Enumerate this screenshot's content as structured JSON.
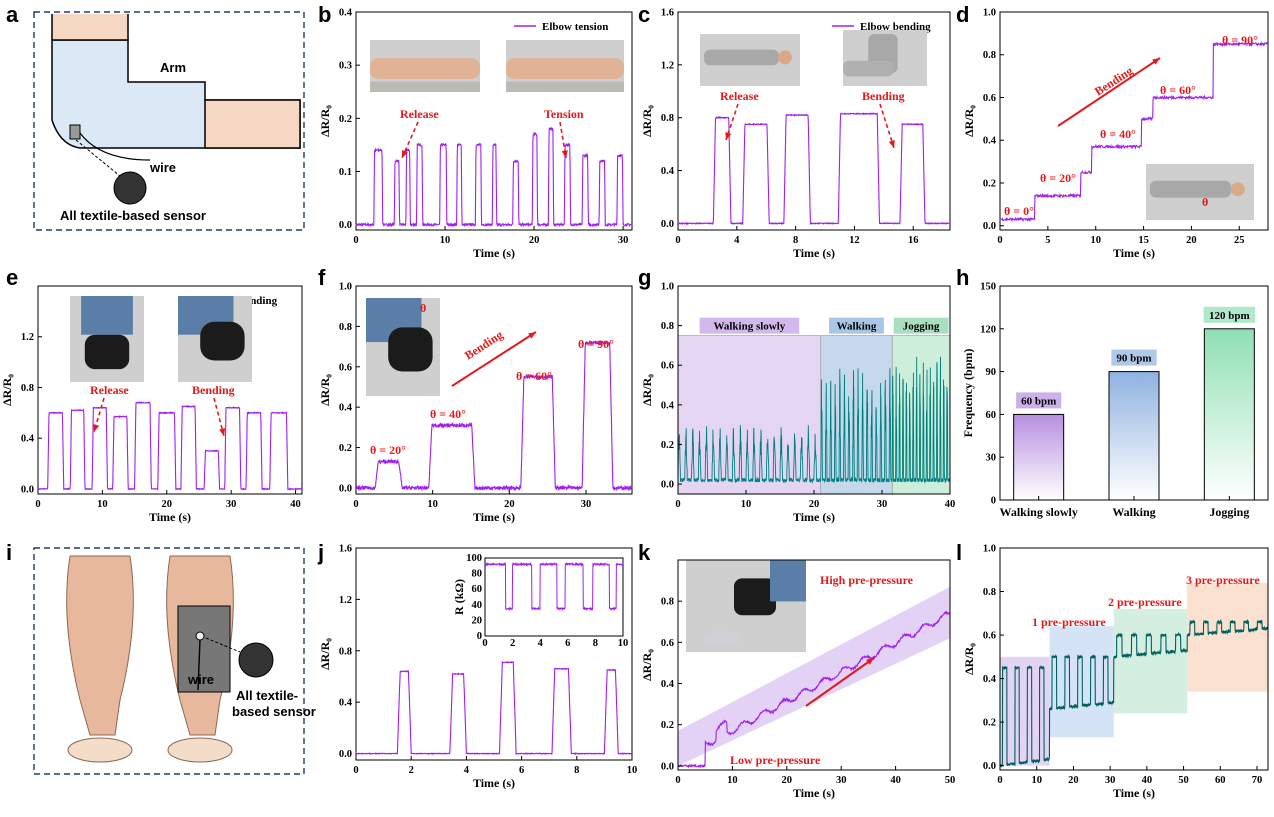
{
  "panels": [
    {
      "id": "a",
      "letter": "a",
      "type": "diagram",
      "labels": [
        "Arm",
        "wire",
        "All textile-based  sensor"
      ]
    },
    {
      "id": "b",
      "letter": "b",
      "type": "line",
      "x_label": "Time (s)",
      "y_label": "ΔR/R₀",
      "xlim": [
        0,
        31
      ],
      "ylim": [
        -0.01,
        0.4
      ],
      "x_ticks": [
        0,
        10,
        20,
        30
      ],
      "y_ticks": [
        0.0,
        0.1,
        0.2,
        0.3,
        0.4
      ],
      "legend": "Elbow tension",
      "color": "#a020f0",
      "annotations": [
        {
          "text": "Release",
          "color": "red"
        },
        {
          "text": "Tension",
          "color": "red"
        }
      ],
      "pulses": [
        [
          2,
          3,
          0.14
        ],
        [
          4.3,
          4.9,
          0.12
        ],
        [
          5.6,
          6.1,
          0.14
        ],
        [
          6.8,
          7.5,
          0.15
        ],
        [
          9.4,
          10.2,
          0.15
        ],
        [
          11.3,
          11.9,
          0.15
        ],
        [
          13.4,
          14.1,
          0.15
        ],
        [
          15.3,
          15.8,
          0.15
        ],
        [
          17.6,
          18.3,
          0.12
        ],
        [
          19.8,
          20.4,
          0.17
        ],
        [
          21.6,
          22.2,
          0.18
        ],
        [
          23.4,
          24.1,
          0.15
        ],
        [
          25.4,
          26.1,
          0.13
        ],
        [
          27.3,
          28,
          0.12
        ],
        [
          29.3,
          30,
          0.13
        ]
      ],
      "baseline": 0.0
    },
    {
      "id": "c",
      "letter": "c",
      "type": "line",
      "x_label": "Time (s)",
      "y_label": "ΔR/R₀",
      "xlim": [
        0,
        18.5
      ],
      "ylim": [
        -0.05,
        1.6
      ],
      "x_ticks": [
        0,
        4,
        8,
        12,
        16
      ],
      "y_ticks": [
        0.0,
        0.4,
        0.8,
        1.2,
        1.6
      ],
      "legend": "Elbow bending",
      "color": "#a020f0",
      "annotations": [
        {
          "text": "Release",
          "color": "red"
        },
        {
          "text": "Bending",
          "color": "red"
        }
      ],
      "pulses": [
        [
          2.4,
          3.6,
          0.8
        ],
        [
          4.4,
          6.2,
          0.75
        ],
        [
          7.2,
          9.0,
          0.82
        ],
        [
          10.9,
          13.7,
          0.83
        ],
        [
          15.1,
          16.8,
          0.75
        ]
      ],
      "baseline": 0.0
    },
    {
      "id": "d",
      "letter": "d",
      "type": "line",
      "x_label": "Time (s)",
      "y_label": "ΔR/R₀",
      "xlim": [
        0,
        28
      ],
      "ylim": [
        -0.02,
        1.0
      ],
      "x_ticks": [
        0,
        5,
        10,
        15,
        20,
        25
      ],
      "y_ticks": [
        0.0,
        0.2,
        0.4,
        0.6,
        0.8,
        1.0
      ],
      "color": "#a020f0",
      "annotations": [
        {
          "text": "θ = 0°"
        },
        {
          "text": "θ = 20°"
        },
        {
          "text": "θ = 40°"
        },
        {
          "text": "θ = 60°"
        },
        {
          "text": "θ = 90°"
        },
        {
          "text": "Bending"
        }
      ],
      "inset_text": "θ",
      "steps": [
        [
          0,
          3.6,
          0.03
        ],
        [
          3.6,
          8.4,
          0.14
        ],
        [
          8.4,
          9.6,
          0.25
        ],
        [
          9.6,
          14.8,
          0.37
        ],
        [
          14.8,
          16,
          0.5
        ],
        [
          16,
          22.3,
          0.6
        ],
        [
          22.3,
          28,
          0.85
        ]
      ]
    },
    {
      "id": "e",
      "letter": "e",
      "type": "line",
      "x_label": "Time (s)",
      "y_label": "ΔR/R₀",
      "xlim": [
        0,
        41
      ],
      "ylim": [
        -0.04,
        1.6
      ],
      "x_ticks": [
        0,
        10,
        20,
        30,
        40
      ],
      "y_ticks": [
        0.0,
        0.4,
        0.8,
        1.2
      ],
      "legend": "Knee bending",
      "color": "#a020f0",
      "annotations": [
        {
          "text": "Release",
          "color": "red"
        },
        {
          "text": "Bending",
          "color": "red"
        }
      ],
      "pulses": [
        [
          1.5,
          4,
          0.6
        ],
        [
          5,
          7.3,
          0.62
        ],
        [
          8.4,
          10.8,
          0.64
        ],
        [
          11.6,
          14,
          0.57
        ],
        [
          15,
          17.6,
          0.68
        ],
        [
          18.6,
          21.4,
          0.6
        ],
        [
          22.2,
          24.6,
          0.65
        ],
        [
          25.8,
          28.2,
          0.3
        ],
        [
          29,
          31.5,
          0.64
        ],
        [
          32.3,
          34.8,
          0.6
        ],
        [
          36,
          38.8,
          0.6
        ]
      ],
      "baseline": 0.0
    },
    {
      "id": "f",
      "letter": "f",
      "type": "line",
      "x_label": "Time (s)",
      "y_label": "ΔR/R₀",
      "xlim": [
        0,
        36
      ],
      "ylim": [
        -0.03,
        1.0
      ],
      "x_ticks": [
        0,
        10,
        20,
        30
      ],
      "y_ticks": [
        0.0,
        0.2,
        0.4,
        0.6,
        0.8,
        1.0
      ],
      "color": "#a020f0",
      "annotations": [
        {
          "text": "θ = 20°"
        },
        {
          "text": "θ = 40°"
        },
        {
          "text": "θ = 60°"
        },
        {
          "text": "θ = 90°"
        },
        {
          "text": "Bending"
        }
      ],
      "inset_text": "θ",
      "pulses": [
        [
          2.5,
          6,
          0.13
        ],
        [
          9.5,
          15.5,
          0.31
        ],
        [
          21.5,
          26,
          0.55
        ],
        [
          29.5,
          33.5,
          0.72
        ]
      ],
      "baseline": 0.0
    },
    {
      "id": "g",
      "letter": "g",
      "type": "line",
      "x_label": "Time (s)",
      "y_label": "ΔR/R₀",
      "xlim": [
        0,
        40
      ],
      "ylim": [
        -0.05,
        1.0
      ],
      "x_ticks": [
        0,
        10,
        20,
        30,
        40
      ],
      "y_ticks": [
        0.0,
        0.2,
        0.4,
        0.6,
        0.8,
        1.0
      ],
      "color": "#008080",
      "regions": [
        {
          "label": "Walking slowly",
          "x0": 0,
          "x1": 21
        },
        {
          "label": "Walking",
          "x0": 21,
          "x1": 31.5
        },
        {
          "label": "Jogging",
          "x0": 31.5,
          "x1": 40
        }
      ],
      "segments": [
        {
          "x0": 0,
          "x1": 21,
          "period": 1.0,
          "amp": 0.25
        },
        {
          "x0": 21,
          "x1": 31.5,
          "period": 0.67,
          "amp": 0.55
        },
        {
          "x0": 31.5,
          "x1": 40,
          "period": 0.5,
          "amp": 0.62
        }
      ]
    },
    {
      "id": "h",
      "letter": "h",
      "type": "bar",
      "x_label": "",
      "y_label": "Frequency (bpm)",
      "ylim": [
        0,
        150
      ],
      "y_ticks": [
        0,
        30,
        60,
        90,
        120,
        150
      ],
      "categories": [
        "Walking slowly",
        "Walking",
        "Jogging"
      ],
      "values": [
        60,
        90,
        120
      ],
      "value_labels": [
        "60 bpm",
        "90 bpm",
        "120 bpm"
      ],
      "colors": [
        "#b68fe0",
        "#8fb2e0",
        "#8fe0b3"
      ]
    },
    {
      "id": "i",
      "letter": "i",
      "type": "diagram",
      "labels": [
        "wire",
        "All textile-",
        "based  sensor"
      ]
    },
    {
      "id": "j",
      "letter": "j",
      "type": "line",
      "x_label": "Time (s)",
      "y_label": "ΔR/R₀",
      "xlim": [
        0,
        10
      ],
      "ylim": [
        -0.05,
        1.6
      ],
      "x_ticks": [
        0,
        2,
        4,
        6,
        8,
        10
      ],
      "y_ticks": [
        0.0,
        0.4,
        0.8,
        1.2,
        1.6
      ],
      "color": "#a020f0",
      "pulses": [
        [
          1.5,
          2.0,
          0.64
        ],
        [
          3.4,
          4.0,
          0.62
        ],
        [
          5.2,
          5.8,
          0.71
        ],
        [
          7.1,
          7.8,
          0.66
        ],
        [
          9.0,
          9.5,
          0.65
        ]
      ],
      "baseline": 0.0,
      "inset": {
        "y_label": "R (kΩ)",
        "xlim": [
          0,
          10
        ],
        "ylim": [
          0,
          100
        ],
        "x_ticks": [
          0,
          2,
          4,
          6,
          8,
          10
        ],
        "y_ticks": [
          0,
          20,
          40,
          60,
          80,
          100
        ],
        "high": 92,
        "low": 35
      }
    },
    {
      "id": "k",
      "letter": "k",
      "type": "line",
      "x_label": "Time (s)",
      "y_label": "ΔR/R₀",
      "xlim": [
        0,
        50
      ],
      "ylim": [
        -0.02,
        1.0
      ],
      "x_ticks": [
        0,
        10,
        20,
        30,
        40,
        50
      ],
      "y_ticks": [
        0.0,
        0.2,
        0.4,
        0.6,
        0.8
      ],
      "color": "#a020f0",
      "annotations": [
        {
          "text": "High pre-pressure",
          "color": "red"
        },
        {
          "text": "Low pre-pressure",
          "color": "red"
        }
      ]
    },
    {
      "id": "l",
      "letter": "l",
      "type": "line",
      "x_label": "Time (s)",
      "y_label": "ΔR/R₀",
      "xlim": [
        0,
        73
      ],
      "ylim": [
        -0.02,
        1.0
      ],
      "x_ticks": [
        0,
        10,
        20,
        30,
        40,
        50,
        60,
        70
      ],
      "y_ticks": [
        0.0,
        0.2,
        0.4,
        0.6,
        0.8,
        1.0
      ],
      "color": "#006060",
      "regions": [
        {
          "x0": 0,
          "x1": 13.5,
          "y0": 0.0,
          "y1": 0.5,
          "color": "#e2d4f2"
        },
        {
          "x0": 13.5,
          "x1": 31,
          "y0": 0.13,
          "y1": 0.64,
          "color": "#d4e4f6"
        },
        {
          "x0": 31,
          "x1": 51,
          "y0": 0.24,
          "y1": 0.72,
          "color": "#d4efdf"
        },
        {
          "x0": 51,
          "x1": 73,
          "y0": 0.34,
          "y1": 0.84,
          "color": "#fbe1cf"
        }
      ],
      "annotations": [
        {
          "text": "1 pre-pressure",
          "color": "red"
        },
        {
          "text": "2 pre-pressure",
          "color": "red"
        },
        {
          "text": "3 pre-pressure",
          "color": "red"
        }
      ]
    }
  ]
}
